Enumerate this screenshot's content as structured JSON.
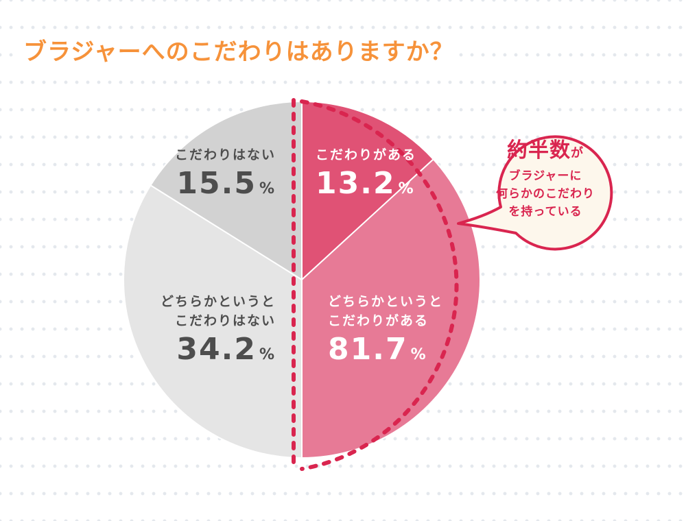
{
  "title": "ブラジャーへのこだわりはありますか？",
  "chart_data": {
    "type": "pie",
    "title": "ブラジャーへのこだわりはありますか？",
    "start_angle": "12 o'clock, clockwise",
    "slices": [
      {
        "label": "こだわりがある",
        "value": 13.2,
        "color": "#e05275"
      },
      {
        "label": "どちらかというとこだわりがある",
        "value": 81.7,
        "color": "#e77a96"
      },
      {
        "label": "どちらかというとこだわりはない",
        "value": 34.2,
        "color": "#e5e5e5"
      },
      {
        "label": "こだわりはない",
        "value": 15.5,
        "color": "#d2d2d2"
      }
    ],
    "highlight_group": [
      "こだわりがある",
      "どちらかというとこだわりがある"
    ],
    "annotation": "約半数がブラジャーに何らかのこだわりを持っている"
  },
  "labels": {
    "strong_yes": {
      "text": "こだわりがある",
      "value": "13.2",
      "unit": "%"
    },
    "some_yes": {
      "line1": "どちらかというと",
      "line2": "こだわりがある",
      "value": "81.7",
      "unit": "%"
    },
    "some_no": {
      "line1": "どちらかというと",
      "line2": "こだわりはない",
      "value": "34.2",
      "unit": "%"
    },
    "strong_no": {
      "text": "こだわりはない",
      "value": "15.5",
      "unit": "%"
    }
  },
  "bubble": {
    "headline": "約半数",
    "headline_suffix": "が",
    "line1": "ブラジャーに",
    "line2": "何らかのこだわり",
    "line3": "を持っている"
  },
  "colors": {
    "title": "#f6923a",
    "accent": "#d9254f",
    "bubble_fill": "#fdf7ec"
  }
}
